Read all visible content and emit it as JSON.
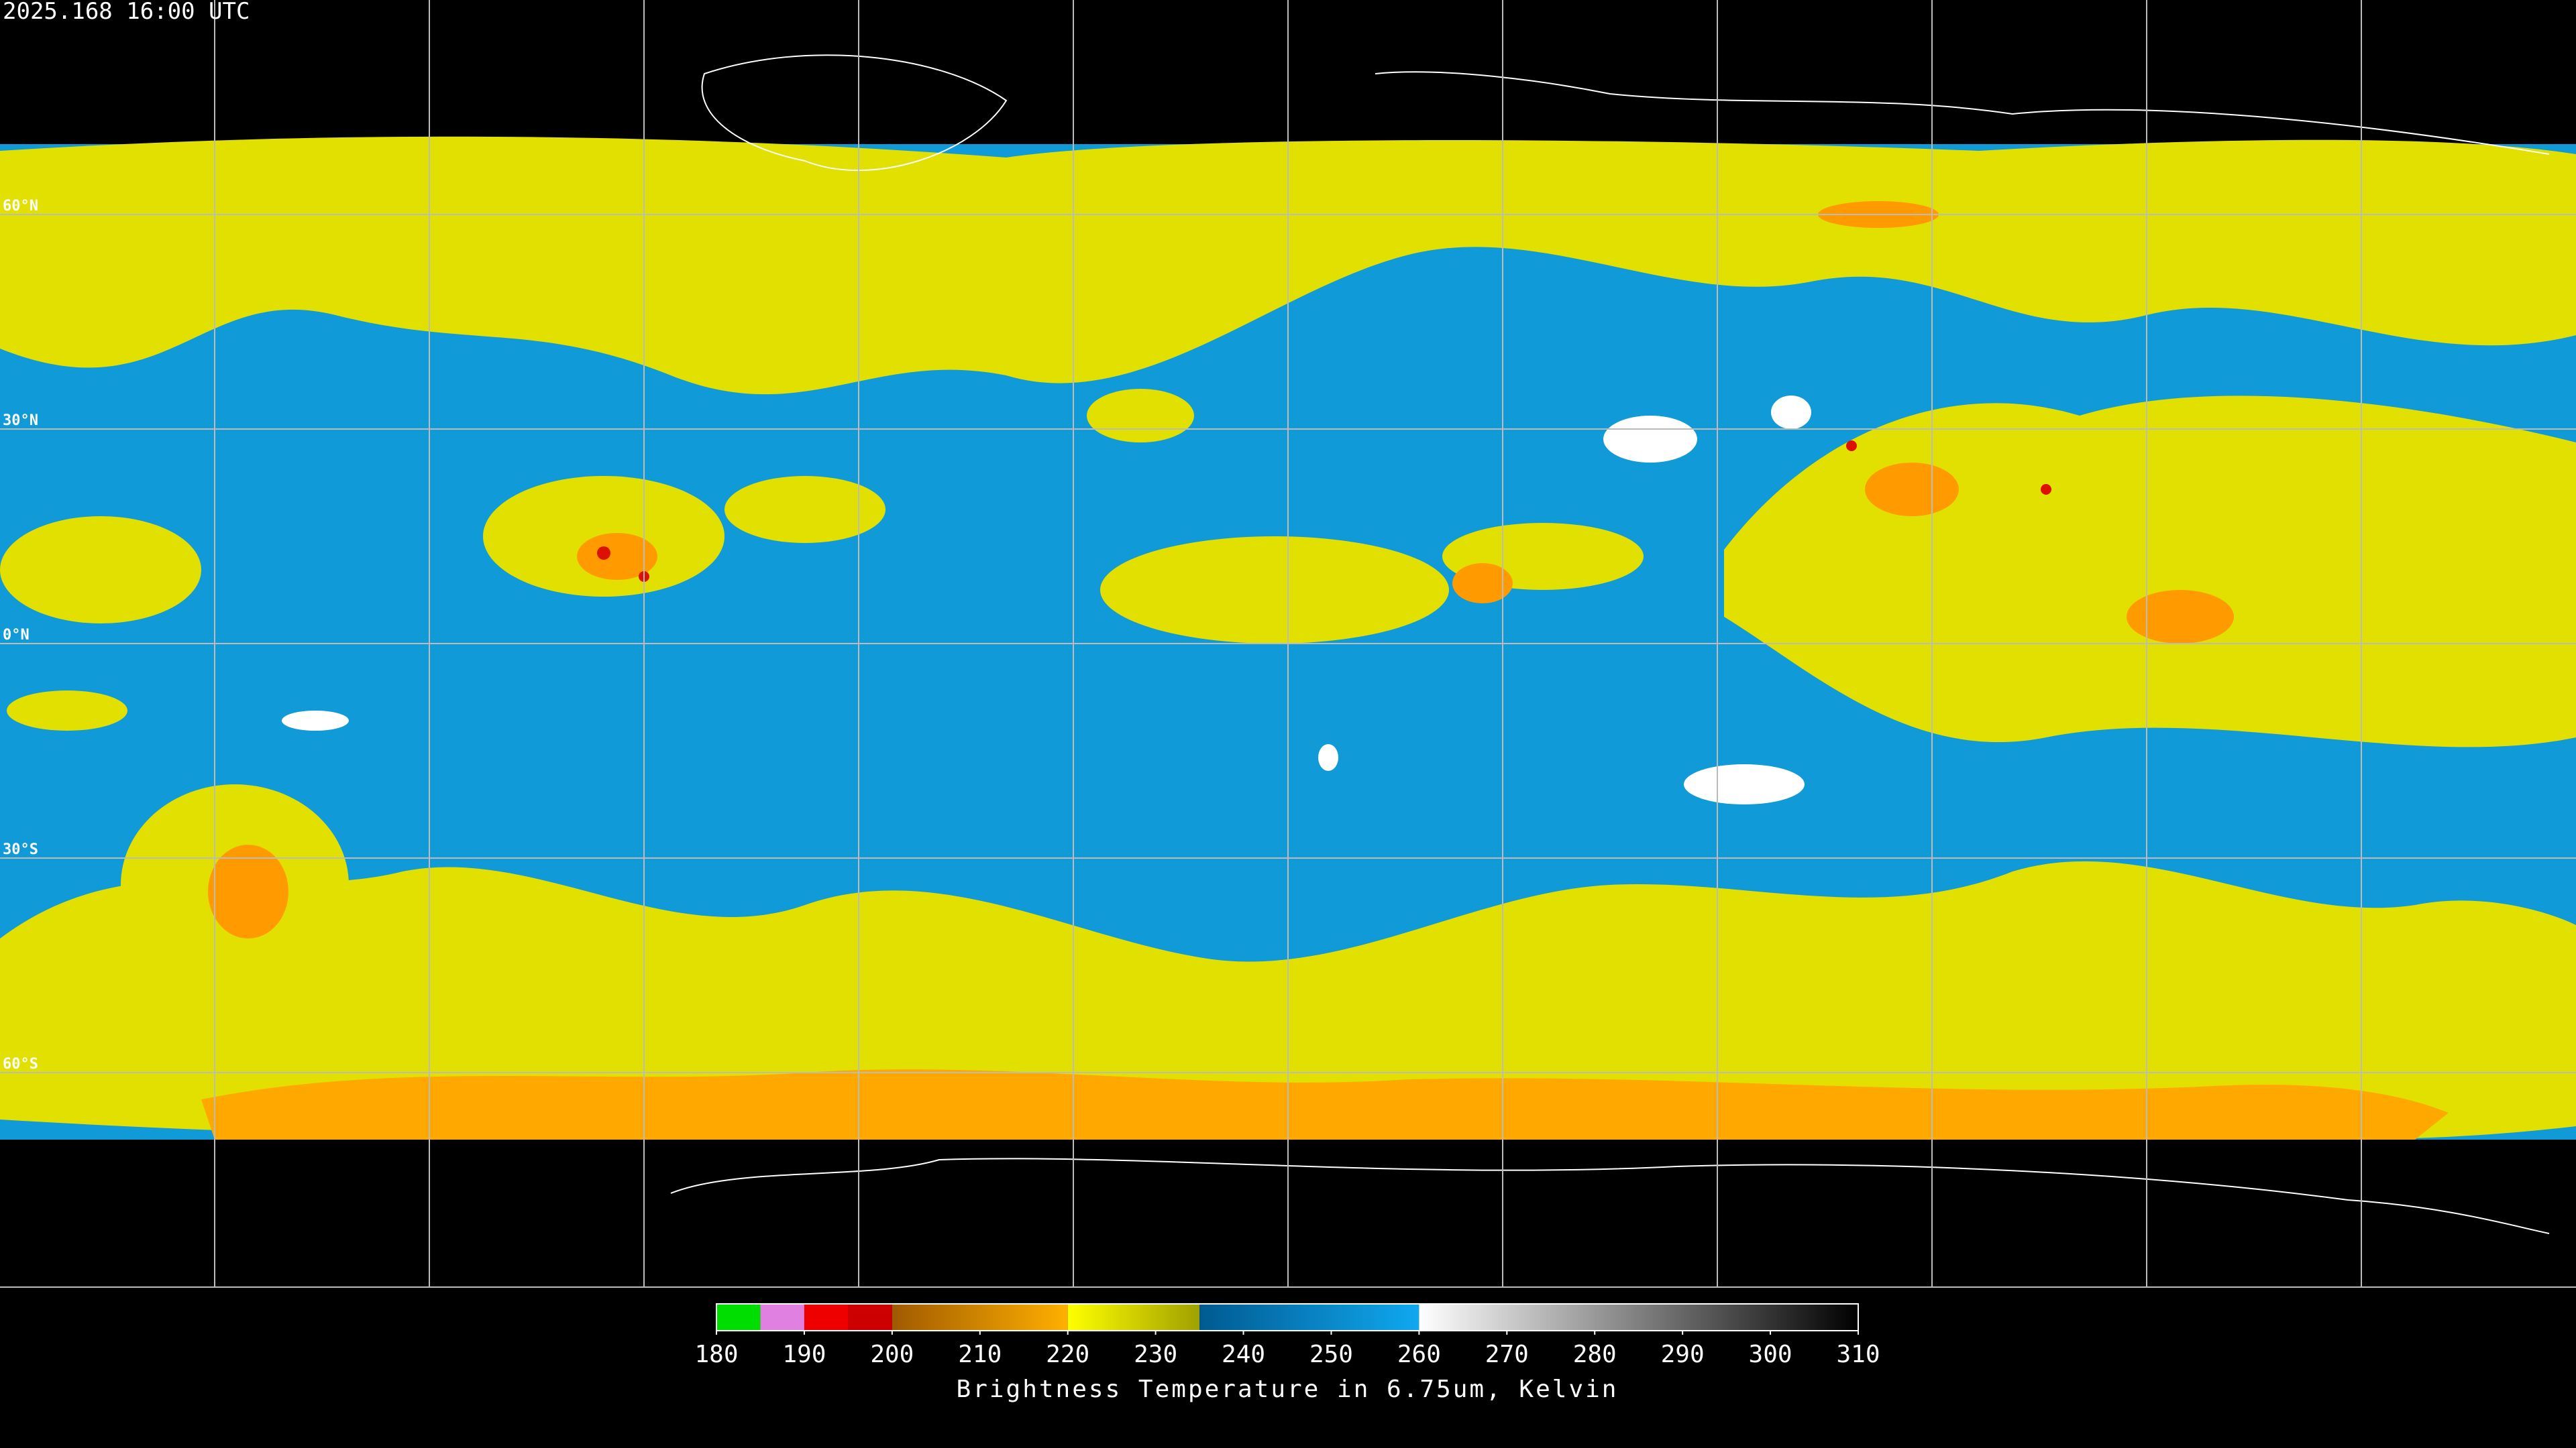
{
  "header": {
    "timestamp": "2025.168 16:00 UTC"
  },
  "map": {
    "lat_lines": [
      {
        "value": 60,
        "label": "60°N"
      },
      {
        "value": 30,
        "label": "30°N"
      },
      {
        "value": 0,
        "label": "0°N"
      },
      {
        "value": -30,
        "label": "30°S"
      },
      {
        "value": -60,
        "label": "60°S"
      }
    ]
  },
  "colorbar": {
    "title": "Brightness Temperature in 6.75um, Kelvin",
    "range": [
      180,
      310
    ],
    "ticks": [
      180,
      190,
      200,
      210,
      220,
      230,
      240,
      250,
      260,
      270,
      280,
      290,
      300,
      310
    ],
    "stops": [
      {
        "from": 180,
        "to": 185,
        "colors": [
          "#00dd00",
          "#00dd00"
        ]
      },
      {
        "from": 185,
        "to": 190,
        "colors": [
          "#e080e0",
          "#e080e0"
        ]
      },
      {
        "from": 190,
        "to": 195,
        "colors": [
          "#ee0000",
          "#ee0000"
        ]
      },
      {
        "from": 195,
        "to": 200,
        "colors": [
          "#cc0000",
          "#cc0000"
        ]
      },
      {
        "from": 200,
        "to": 220,
        "colors": [
          "#a05a00",
          "#ffb000"
        ]
      },
      {
        "from": 220,
        "to": 235,
        "colors": [
          "#ffff00",
          "#a0a000"
        ]
      },
      {
        "from": 235,
        "to": 260,
        "colors": [
          "#005a90",
          "#10a8f0"
        ]
      },
      {
        "from": 260,
        "to": 310,
        "colors": [
          "#ffffff",
          "#000000"
        ]
      }
    ]
  }
}
